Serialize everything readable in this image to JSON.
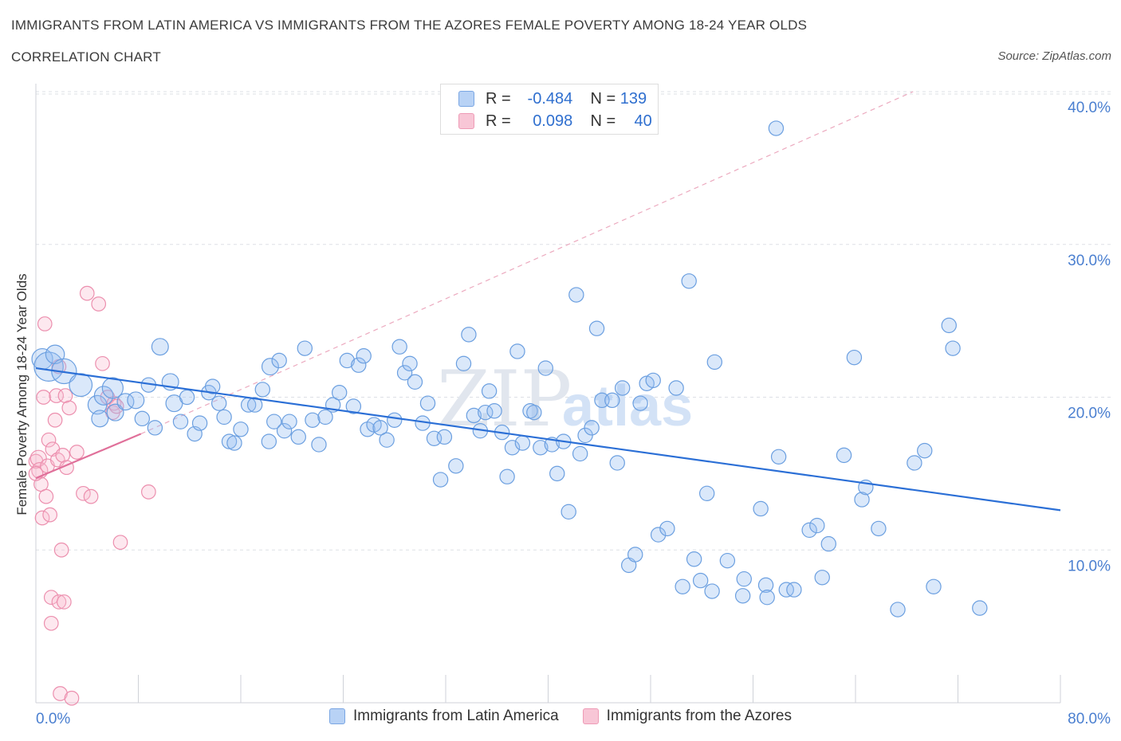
{
  "header": {
    "title": "IMMIGRANTS FROM LATIN AMERICA VS IMMIGRANTS FROM THE AZORES FEMALE POVERTY AMONG 18-24 YEAR OLDS",
    "subtitle": "CORRELATION CHART",
    "source": "Source: ZipAtlas.com"
  },
  "legend": {
    "r_label": "R =",
    "n_label": "N =",
    "series": [
      {
        "name": "Immigrants from Latin America",
        "r": "-0.484",
        "n": "139",
        "color": "#6b9fe0"
      },
      {
        "name": "Immigrants from the Azores",
        "r": "0.098",
        "n": "40",
        "color": "#ec8fae"
      }
    ]
  },
  "watermark": {
    "zip": "ZIP",
    "atlas": "atlas"
  },
  "chart_data": {
    "type": "scatter",
    "title": "IMMIGRANTS FROM LATIN AMERICA VS IMMIGRANTS FROM THE AZORES FEMALE POVERTY AMONG 18-24 YEAR OLDS",
    "subtitle": "CORRELATION CHART",
    "xlabel": "",
    "ylabel": "Female Poverty Among 18-24 Year Olds",
    "xlim": [
      0,
      80
    ],
    "ylim": [
      0,
      40
    ],
    "x_tick_labels": [
      "0.0%",
      "80.0%"
    ],
    "y_ticks": [
      10,
      20,
      30,
      40
    ],
    "y_tick_labels": [
      "10.0%",
      "20.0%",
      "30.0%",
      "40.0%"
    ],
    "grid": true,
    "legend_position": "top-center",
    "colors": {
      "blue": "#6b9fe0",
      "blue_line": "#2b6fd6",
      "pink": "#ec8fae",
      "pink_line": "#e0709a",
      "tick_label": "#4a7fd0"
    },
    "series": [
      {
        "name": "Immigrants from Latin America",
        "trend": {
          "x": [
            0,
            80
          ],
          "y": [
            21.9,
            12.6
          ]
        },
        "points": [
          [
            0.5,
            22.5,
            10
          ],
          [
            1.0,
            22.0,
            14
          ],
          [
            1.5,
            22.8,
            9
          ],
          [
            2.2,
            21.7,
            12
          ],
          [
            3.5,
            20.8,
            11
          ],
          [
            4.8,
            19.5,
            9
          ],
          [
            5.0,
            18.6,
            8
          ],
          [
            5.3,
            20.1,
            9
          ],
          [
            6.0,
            20.6,
            10
          ],
          [
            6.2,
            19.0,
            8
          ],
          [
            7.0,
            19.7,
            8
          ],
          [
            7.8,
            19.8,
            8
          ],
          [
            8.3,
            18.6,
            7
          ],
          [
            8.8,
            20.8,
            7
          ],
          [
            9.3,
            18.0,
            7
          ],
          [
            9.7,
            23.3,
            8
          ],
          [
            10.5,
            21.0,
            8
          ],
          [
            10.8,
            19.6,
            8
          ],
          [
            11.3,
            18.4,
            7
          ],
          [
            11.8,
            20.0,
            7
          ],
          [
            12.4,
            17.6,
            7
          ],
          [
            12.8,
            18.3,
            7
          ],
          [
            13.5,
            20.3,
            7
          ],
          [
            13.8,
            20.7,
            7
          ],
          [
            14.3,
            19.6,
            7
          ],
          [
            14.7,
            18.7,
            7
          ],
          [
            15.1,
            17.1,
            7
          ],
          [
            15.5,
            17.0,
            7
          ],
          [
            16.0,
            17.9,
            7
          ],
          [
            16.6,
            19.5,
            7
          ],
          [
            17.1,
            19.5,
            7
          ],
          [
            17.7,
            20.5,
            7
          ],
          [
            18.2,
            17.1,
            7
          ],
          [
            18.6,
            18.4,
            7
          ],
          [
            18.3,
            22.0,
            8
          ],
          [
            19.0,
            22.4,
            7
          ],
          [
            19.4,
            17.8,
            7
          ],
          [
            19.8,
            18.4,
            7
          ],
          [
            20.5,
            17.4,
            7
          ],
          [
            21.0,
            23.2,
            7
          ],
          [
            21.6,
            18.5,
            7
          ],
          [
            22.1,
            16.9,
            7
          ],
          [
            22.6,
            18.7,
            7
          ],
          [
            23.2,
            19.5,
            7
          ],
          [
            23.7,
            20.3,
            7
          ],
          [
            24.3,
            22.4,
            7
          ],
          [
            24.8,
            19.4,
            7
          ],
          [
            25.2,
            22.1,
            7
          ],
          [
            25.6,
            22.7,
            7
          ],
          [
            25.9,
            17.9,
            7
          ],
          [
            26.4,
            18.2,
            7
          ],
          [
            26.9,
            18.0,
            7
          ],
          [
            27.4,
            17.2,
            7
          ],
          [
            28.0,
            18.5,
            7
          ],
          [
            28.4,
            23.3,
            7
          ],
          [
            28.8,
            21.6,
            7
          ],
          [
            29.2,
            22.2,
            7
          ],
          [
            29.6,
            21.0,
            7
          ],
          [
            30.2,
            18.3,
            7
          ],
          [
            30.6,
            19.6,
            7
          ],
          [
            31.1,
            17.3,
            7
          ],
          [
            31.6,
            14.6,
            7
          ],
          [
            31.9,
            17.4,
            7
          ],
          [
            32.8,
            15.5,
            7
          ],
          [
            33.4,
            22.2,
            7
          ],
          [
            33.8,
            24.1,
            7
          ],
          [
            34.2,
            18.8,
            7
          ],
          [
            34.7,
            17.8,
            7
          ],
          [
            35.1,
            19.0,
            7
          ],
          [
            35.4,
            20.4,
            7
          ],
          [
            35.8,
            19.1,
            7
          ],
          [
            36.4,
            17.7,
            7
          ],
          [
            36.8,
            14.8,
            7
          ],
          [
            37.2,
            16.7,
            7
          ],
          [
            37.6,
            23.0,
            7
          ],
          [
            38.0,
            17.0,
            7
          ],
          [
            38.6,
            19.1,
            7
          ],
          [
            38.9,
            19.0,
            7
          ],
          [
            39.4,
            16.7,
            7
          ],
          [
            39.8,
            21.9,
            7
          ],
          [
            40.3,
            16.9,
            7
          ],
          [
            40.7,
            15.0,
            7
          ],
          [
            41.2,
            17.1,
            7
          ],
          [
            41.6,
            12.5,
            7
          ],
          [
            42.2,
            26.7,
            7
          ],
          [
            42.5,
            16.3,
            7
          ],
          [
            42.9,
            17.5,
            7
          ],
          [
            43.4,
            18.0,
            7
          ],
          [
            43.8,
            24.5,
            7
          ],
          [
            44.2,
            19.8,
            7
          ],
          [
            45.0,
            19.8,
            7
          ],
          [
            45.4,
            15.7,
            7
          ],
          [
            45.8,
            20.6,
            7
          ],
          [
            46.3,
            9.0,
            7
          ],
          [
            46.8,
            9.7,
            7
          ],
          [
            47.2,
            19.6,
            7
          ],
          [
            47.7,
            20.9,
            7
          ],
          [
            48.2,
            21.1,
            7
          ],
          [
            48.6,
            11.0,
            7
          ],
          [
            49.3,
            11.4,
            7
          ],
          [
            50.0,
            20.6,
            7
          ],
          [
            50.5,
            7.6,
            7
          ],
          [
            51.0,
            27.6,
            7
          ],
          [
            51.4,
            9.4,
            7
          ],
          [
            51.9,
            8.0,
            7
          ],
          [
            52.4,
            13.7,
            7
          ],
          [
            53.0,
            22.3,
            7
          ],
          [
            52.8,
            7.3,
            7
          ],
          [
            54.0,
            9.3,
            7
          ],
          [
            55.3,
            8.1,
            7
          ],
          [
            55.2,
            7.0,
            7
          ],
          [
            56.6,
            12.7,
            7
          ],
          [
            57.0,
            7.7,
            7
          ],
          [
            57.1,
            6.9,
            7
          ],
          [
            58.0,
            16.1,
            7
          ],
          [
            58.6,
            7.4,
            7
          ],
          [
            59.2,
            7.4,
            7
          ],
          [
            60.4,
            11.3,
            7
          ],
          [
            61.0,
            11.6,
            7
          ],
          [
            61.4,
            8.2,
            7
          ],
          [
            61.9,
            10.4,
            7
          ],
          [
            63.1,
            16.2,
            7
          ],
          [
            63.9,
            22.6,
            7
          ],
          [
            64.5,
            13.3,
            7
          ],
          [
            64.8,
            14.1,
            7
          ],
          [
            65.8,
            11.4,
            7
          ],
          [
            67.3,
            6.1,
            7
          ],
          [
            68.6,
            15.7,
            7
          ],
          [
            69.4,
            16.5,
            7
          ],
          [
            70.1,
            7.6,
            7
          ],
          [
            71.3,
            24.7,
            7
          ],
          [
            71.6,
            23.2,
            7
          ],
          [
            73.7,
            6.2,
            7
          ],
          [
            57.8,
            37.6,
            7
          ]
        ]
      },
      {
        "name": "Immigrants from the Azores",
        "trend": {
          "x": [
            0,
            8.2
          ],
          "y": [
            14.7,
            17.6
          ]
        },
        "points": [
          [
            0.0,
            15.8,
            7
          ],
          [
            0.2,
            16.0,
            8
          ],
          [
            0.3,
            15.2,
            8
          ],
          [
            0.4,
            14.3,
            7
          ],
          [
            0.5,
            12.1,
            7
          ],
          [
            0.6,
            20.0,
            7
          ],
          [
            0.7,
            24.8,
            7
          ],
          [
            0.8,
            13.5,
            7
          ],
          [
            0.9,
            15.5,
            7
          ],
          [
            1.0,
            17.2,
            7
          ],
          [
            1.1,
            12.3,
            7
          ],
          [
            1.2,
            5.2,
            7
          ],
          [
            1.2,
            6.9,
            7
          ],
          [
            1.3,
            16.6,
            7
          ],
          [
            1.5,
            18.5,
            7
          ],
          [
            1.6,
            20.1,
            7
          ],
          [
            1.7,
            15.9,
            7
          ],
          [
            1.8,
            22.0,
            7
          ],
          [
            1.8,
            6.6,
            7
          ],
          [
            1.9,
            0.6,
            7
          ],
          [
            2.0,
            10.0,
            7
          ],
          [
            2.1,
            16.2,
            7
          ],
          [
            2.2,
            6.6,
            7
          ],
          [
            2.3,
            20.1,
            7
          ],
          [
            2.4,
            15.4,
            7
          ],
          [
            2.6,
            19.3,
            7
          ],
          [
            2.8,
            0.3,
            7
          ],
          [
            3.2,
            16.4,
            7
          ],
          [
            3.7,
            13.7,
            7
          ],
          [
            4.0,
            26.8,
            7
          ],
          [
            4.3,
            13.5,
            7
          ],
          [
            4.9,
            26.1,
            7
          ],
          [
            5.2,
            22.2,
            7
          ],
          [
            5.6,
            20.0,
            7
          ],
          [
            6.0,
            19.0,
            7
          ],
          [
            6.1,
            19.6,
            7
          ],
          [
            6.3,
            19.4,
            7
          ],
          [
            6.6,
            10.5,
            7
          ],
          [
            8.8,
            13.8,
            7
          ],
          [
            0.0,
            15.0,
            7
          ]
        ]
      }
    ]
  }
}
